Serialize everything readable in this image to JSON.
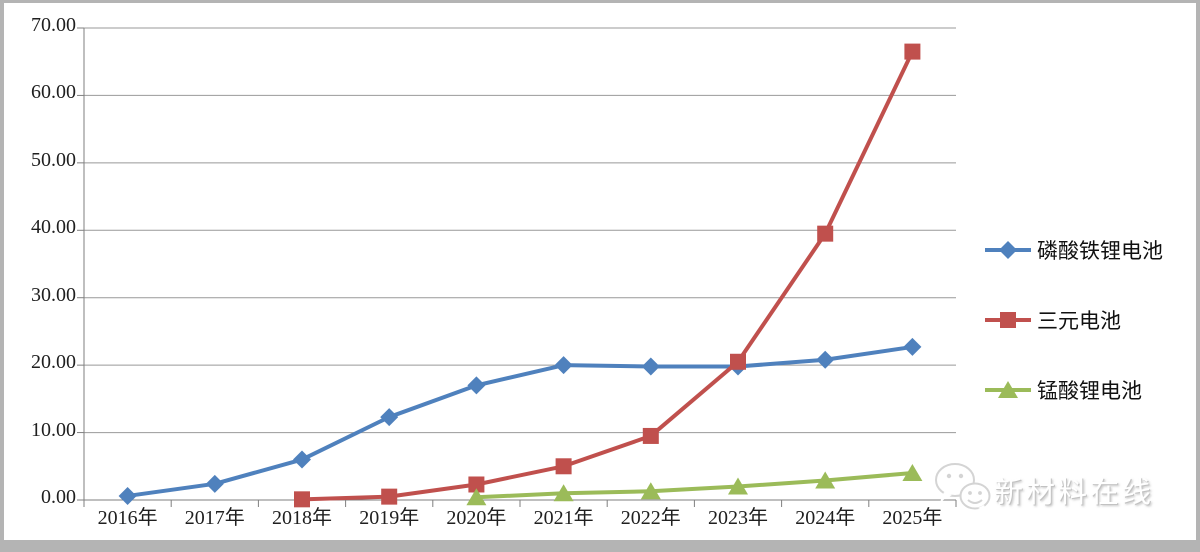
{
  "chart_data": {
    "type": "line",
    "categories": [
      "2016年",
      "2017年",
      "2018年",
      "2019年",
      "2020年",
      "2021年",
      "2022年",
      "2023年",
      "2024年",
      "2025年"
    ],
    "series": [
      {
        "name": "磷酸铁锂电池",
        "color": "#4F81BD",
        "marker": "diamond",
        "values": [
          0.6,
          2.4,
          6.0,
          12.3,
          17.0,
          20.0,
          19.8,
          19.8,
          20.8,
          22.7
        ]
      },
      {
        "name": "三元电池",
        "color": "#C0504D",
        "marker": "square",
        "values": [
          null,
          null,
          0.1,
          0.5,
          2.3,
          5.0,
          9.5,
          20.5,
          39.5,
          66.5
        ]
      },
      {
        "name": "锰酸锂电池",
        "color": "#9BBB59",
        "marker": "triangle",
        "values": [
          null,
          null,
          null,
          null,
          0.4,
          1.0,
          1.3,
          2.0,
          2.9,
          4.0
        ]
      }
    ],
    "title": "",
    "xlabel": "",
    "ylabel": "",
    "ylim": [
      0,
      70
    ],
    "y_tick_labels": [
      "0.00",
      "10.00",
      "20.00",
      "30.00",
      "40.00",
      "50.00",
      "60.00",
      "70.00"
    ],
    "grid": true,
    "legend_position": "right"
  },
  "watermark": {
    "text": "新材料在线",
    "icon": "wechat-bubbles-icon"
  },
  "style_colors": {
    "grid_line": "#999999",
    "axis_line": "#7f7f7f",
    "frame_border": "#b4b4b4",
    "background": "#ffffff",
    "label_text": "#1f1f1f"
  }
}
